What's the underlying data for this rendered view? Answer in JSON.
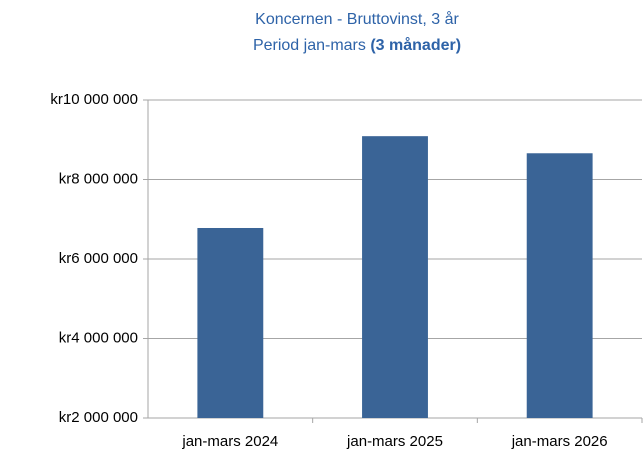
{
  "chart_data": {
    "type": "bar",
    "title": "Koncernen - Bruttovinst, 3 år",
    "subtitle": [
      "Period jan-mars",
      "(3 månader)"
    ],
    "categories": [
      "jan-mars 2024",
      "jan-mars 2025",
      "jan-mars 2026"
    ],
    "values": [
      6780000,
      9090000,
      8660000
    ],
    "color": "#3a6496",
    "ylim": [
      2000000,
      10000000
    ],
    "yticks": [
      {
        "value": 2000000,
        "label": "kr2 000 000"
      },
      {
        "value": 4000000,
        "label": "kr4 000 000"
      },
      {
        "value": 6000000,
        "label": "kr6 000 000"
      },
      {
        "value": 8000000,
        "label": "kr8 000 000"
      },
      {
        "value": 10000000,
        "label": "kr10 000 000"
      }
    ],
    "grid": true
  }
}
